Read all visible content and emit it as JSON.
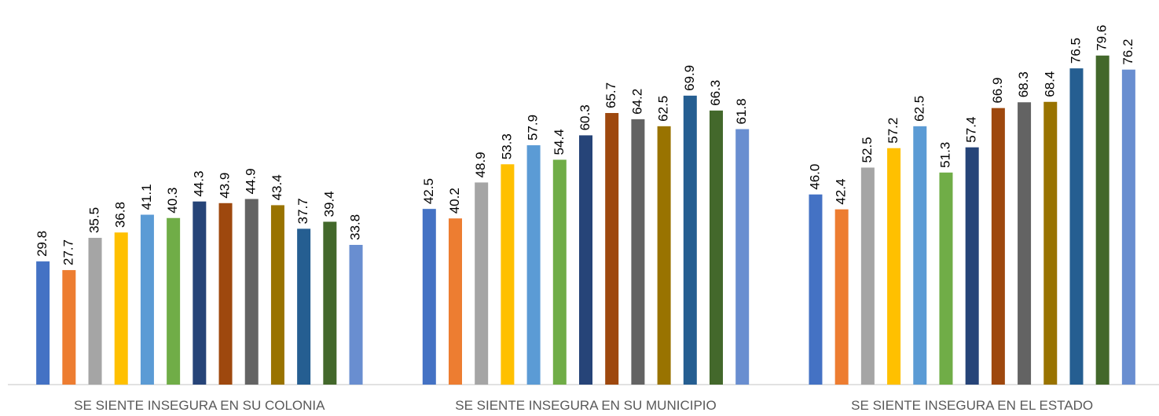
{
  "chart_data": {
    "type": "bar",
    "categories": [
      "SE SIENTE INSEGURA EN SU COLONIA",
      "SE SIENTE INSEGURA EN SU MUNICIPIO",
      "SE SIENTE INSEGURA EN EL ESTADO"
    ],
    "series": [
      {
        "color": "#4472c4",
        "values": [
          29.8,
          42.5,
          46.0
        ],
        "value_labels": [
          "29.8",
          "42.5",
          "46.0"
        ]
      },
      {
        "color": "#ed7d31",
        "values": [
          27.7,
          40.2,
          42.4
        ]
      },
      {
        "color": "#a5a5a5",
        "values": [
          35.5,
          48.9,
          52.5
        ]
      },
      {
        "color": "#ffc000",
        "values": [
          36.8,
          53.3,
          57.2
        ]
      },
      {
        "color": "#5b9bd5",
        "values": [
          41.1,
          57.9,
          62.5
        ]
      },
      {
        "color": "#70ad47",
        "values": [
          40.3,
          54.4,
          51.3
        ]
      },
      {
        "color": "#264478",
        "values": [
          44.3,
          60.3,
          57.4
        ]
      },
      {
        "color": "#9e480e",
        "values": [
          43.9,
          65.7,
          66.9
        ]
      },
      {
        "color": "#636363",
        "values": [
          44.9,
          64.2,
          68.3
        ]
      },
      {
        "color": "#997300",
        "values": [
          43.4,
          62.5,
          68.4
        ]
      },
      {
        "color": "#255e91",
        "values": [
          37.7,
          69.9,
          76.5
        ]
      },
      {
        "color": "#43682b",
        "values": [
          39.4,
          66.3,
          79.6
        ]
      },
      {
        "color": "#698ed0",
        "values": [
          33.8,
          61.8,
          76.2
        ]
      }
    ],
    "ylim": [
      0,
      90
    ]
  }
}
